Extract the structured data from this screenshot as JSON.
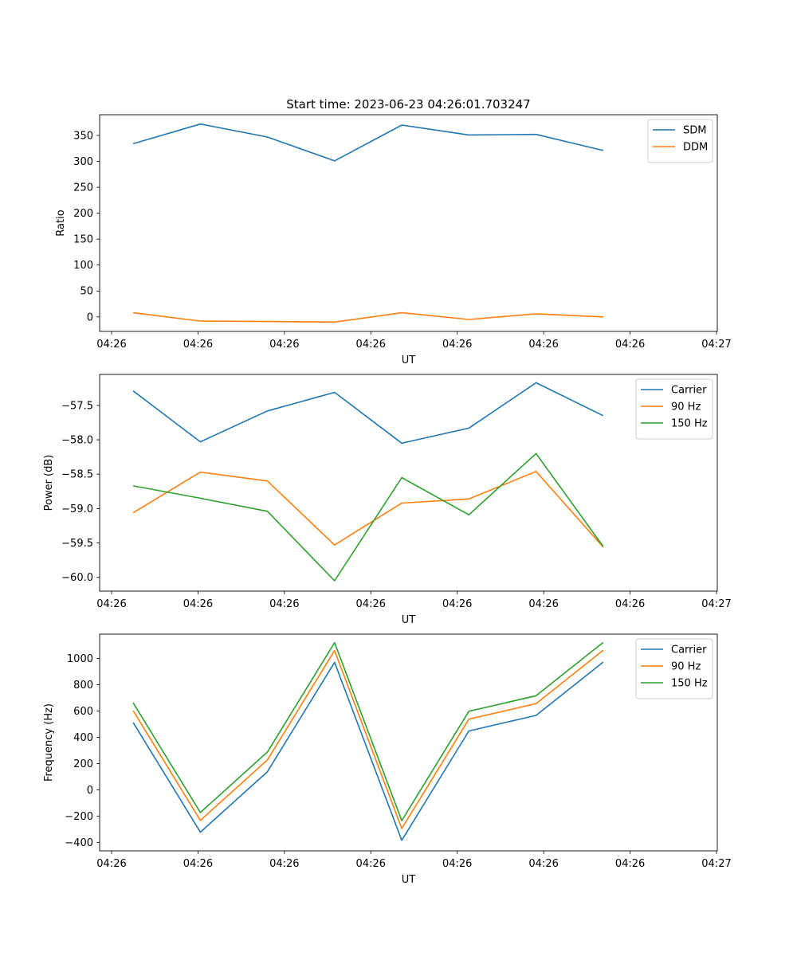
{
  "figure": {
    "title": "Start time: 2023-06-23 04:26:01.703247"
  },
  "chart_data": [
    {
      "type": "line",
      "title": "Start time: 2023-06-23 04:26:01.703247",
      "xlabel": "UT",
      "ylabel": "Ratio",
      "x_tick_labels": [
        "04:26",
        "04:26",
        "04:26",
        "04:26",
        "04:26",
        "04:26",
        "04:26",
        "04:27"
      ],
      "x_index_range": [
        -0.5,
        8.7
      ],
      "ylim": [
        -28,
        390
      ],
      "y_ticks": [
        0,
        50,
        100,
        150,
        200,
        250,
        300,
        350
      ],
      "legend_position": "upper-right",
      "grid": false,
      "series": [
        {
          "name": "SDM",
          "color": "#1f77b4",
          "x": [
            0,
            1,
            2,
            3,
            4,
            5,
            6,
            7
          ],
          "values": [
            334,
            372,
            347,
            301,
            370,
            351,
            352,
            321
          ]
        },
        {
          "name": "DDM",
          "color": "#ff7f0e",
          "x": [
            0,
            1,
            2,
            3,
            4,
            5,
            6,
            7
          ],
          "values": [
            8,
            -8,
            -9,
            -10,
            8,
            -5,
            6,
            0
          ]
        }
      ]
    },
    {
      "type": "line",
      "title": "",
      "xlabel": "UT",
      "ylabel": "Power (dB)",
      "x_tick_labels": [
        "04:26",
        "04:26",
        "04:26",
        "04:26",
        "04:26",
        "04:26",
        "04:26",
        "04:27"
      ],
      "x_index_range": [
        -0.5,
        8.7
      ],
      "ylim": [
        -60.2,
        -57.05
      ],
      "y_ticks": [
        -60.0,
        -59.5,
        -59.0,
        -58.5,
        -58.0,
        -57.5
      ],
      "legend_position": "upper-right",
      "grid": false,
      "series": [
        {
          "name": "Carrier",
          "color": "#1f77b4",
          "x": [
            0,
            1,
            2,
            3,
            4,
            5,
            6,
            7
          ],
          "values": [
            -57.29,
            -58.03,
            -57.58,
            -57.31,
            -58.05,
            -57.83,
            -57.17,
            -57.65
          ]
        },
        {
          "name": "90 Hz",
          "color": "#ff7f0e",
          "x": [
            0,
            1,
            2,
            3,
            4,
            5,
            6,
            7
          ],
          "values": [
            -59.06,
            -58.47,
            -58.6,
            -59.53,
            -58.92,
            -58.86,
            -58.46,
            -59.56
          ]
        },
        {
          "name": "150 Hz",
          "color": "#2ca02c",
          "x": [
            0,
            1,
            2,
            3,
            4,
            5,
            6,
            7
          ],
          "values": [
            -58.67,
            -58.85,
            -59.04,
            -60.05,
            -58.55,
            -59.09,
            -58.2,
            -59.55
          ]
        }
      ]
    },
    {
      "type": "line",
      "title": "",
      "xlabel": "UT",
      "ylabel": "Frequency (Hz)",
      "x_tick_labels": [
        "04:26",
        "04:26",
        "04:26",
        "04:26",
        "04:26",
        "04:26",
        "04:26",
        "04:27"
      ],
      "x_index_range": [
        -0.5,
        8.7
      ],
      "ylim": [
        -465,
        1185
      ],
      "y_ticks": [
        -400,
        -200,
        0,
        200,
        400,
        600,
        800,
        1000
      ],
      "legend_position": "upper-right",
      "grid": false,
      "series": [
        {
          "name": "Carrier",
          "color": "#1f77b4",
          "x": [
            0,
            1,
            2,
            3,
            4,
            5,
            6,
            7
          ],
          "values": [
            512,
            -323,
            138,
            970,
            -385,
            448,
            566,
            972
          ]
        },
        {
          "name": "90 Hz",
          "color": "#ff7f0e",
          "x": [
            0,
            1,
            2,
            3,
            4,
            5,
            6,
            7
          ],
          "values": [
            602,
            -233,
            228,
            1060,
            -295,
            538,
            656,
            1062
          ]
        },
        {
          "name": "150 Hz",
          "color": "#2ca02c",
          "x": [
            0,
            1,
            2,
            3,
            4,
            5,
            6,
            7
          ],
          "values": [
            662,
            -173,
            288,
            1120,
            -235,
            598,
            716,
            1122
          ]
        }
      ]
    }
  ]
}
